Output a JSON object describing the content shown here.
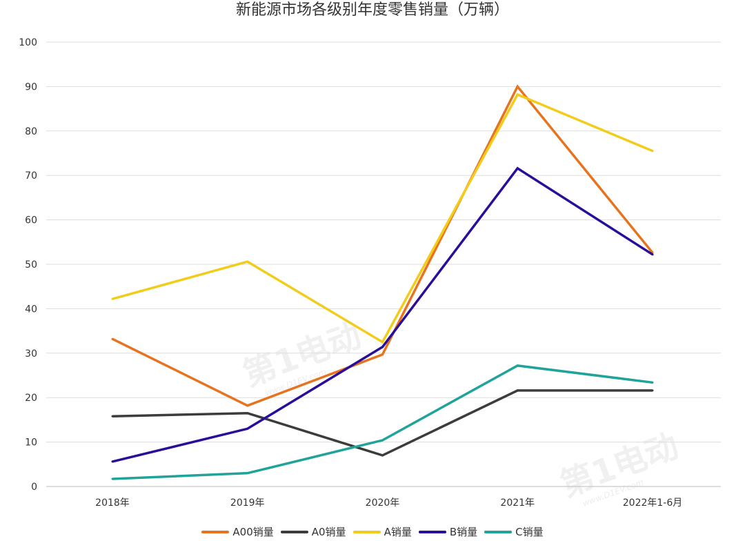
{
  "chart_data": {
    "type": "line",
    "title": "新能源市场各级别年度零售销量（万辆）",
    "categories": [
      "2018年",
      "2019年",
      "2020年",
      "2021年",
      "2022年1-6月"
    ],
    "ylim": [
      0,
      100
    ],
    "yticks": [
      0,
      10,
      20,
      30,
      40,
      50,
      60,
      70,
      80,
      90,
      100
    ],
    "grid": true,
    "legend_position": "bottom",
    "series": [
      {
        "name": "A00销量",
        "color": "#E8731E",
        "values": [
          33.2,
          18.2,
          29.7,
          90.0,
          52.6
        ]
      },
      {
        "name": "A0销量",
        "color": "#3C3C3C",
        "values": [
          15.8,
          16.5,
          7.0,
          21.6,
          21.6
        ]
      },
      {
        "name": "A销量",
        "color": "#F2CC1A",
        "values": [
          42.2,
          50.6,
          32.5,
          88.2,
          75.5
        ]
      },
      {
        "name": "B销量",
        "color": "#2A0E9A",
        "values": [
          5.6,
          13.0,
          31.4,
          71.6,
          52.2
        ]
      },
      {
        "name": "C销量",
        "color": "#1FA39A",
        "values": [
          1.7,
          3.0,
          10.4,
          27.2,
          23.4
        ]
      }
    ]
  },
  "watermark": {
    "logo": "第1电动",
    "site": "www.D1EV.com"
  }
}
